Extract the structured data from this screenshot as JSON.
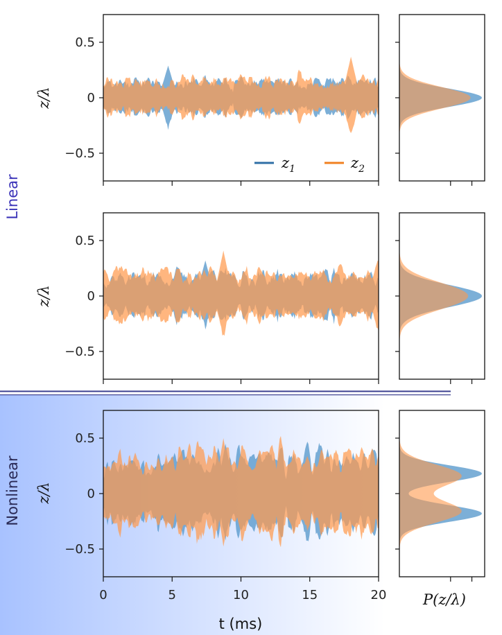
{
  "colors": {
    "z1": "#5b9bcd",
    "z2": "#ff9a4d",
    "z1_line": "#2f6fa6",
    "z2_line": "#f08020",
    "linear_label": "#3a32b8",
    "nonlinear_label": "#2a2a55",
    "separator": "#3b3f8f",
    "nonlinear_bg_start": "#a8c2ff",
    "nonlinear_bg_end": "#ffffff"
  },
  "labels": {
    "linear": "Linear",
    "nonlinear": "Nonlinear",
    "ylabel": "z/λ",
    "xlabel": "t (ms)",
    "hist_xlabel": "P(z/λ)"
  },
  "legend": {
    "placement": "lower-right",
    "entries": [
      {
        "series": "z1",
        "text": "z",
        "sub": "1"
      },
      {
        "series": "z2",
        "text": "z",
        "sub": "2"
      }
    ]
  },
  "chart_data": [
    {
      "type": "area",
      "panel": "linear-top-time",
      "xlim": [
        0,
        20
      ],
      "ylim": [
        -0.75,
        0.75
      ],
      "yticks": [
        0.5,
        0,
        -0.5
      ],
      "ytick_labels": [
        "0.5",
        "0",
        "−0.5"
      ],
      "xticks": [
        0,
        5,
        10,
        15,
        20
      ],
      "xtick_labels_shown": false,
      "series": [
        {
          "key": "z1",
          "amplitude_envelope": 0.14,
          "peak": 0.29,
          "peak_t": 4.7
        },
        {
          "key": "z2",
          "amplitude_envelope": 0.15,
          "peak": 0.37,
          "peak_t": 18.0
        }
      ]
    },
    {
      "type": "area",
      "panel": "linear-top-hist",
      "orientation": "horizontal",
      "ylim": [
        -0.75,
        0.75
      ],
      "distribution": "gaussian",
      "series": [
        {
          "key": "z1",
          "mean": 0,
          "sd": 0.082
        },
        {
          "key": "z2",
          "mean": 0,
          "sd": 0.095
        }
      ]
    },
    {
      "type": "area",
      "panel": "linear-bottom-time",
      "xlim": [
        0,
        20
      ],
      "ylim": [
        -0.75,
        0.75
      ],
      "yticks": [
        0.5,
        0,
        -0.5
      ],
      "ytick_labels": [
        "0.5",
        "0",
        "−0.5"
      ],
      "xticks": [
        0,
        5,
        10,
        15,
        20
      ],
      "xtick_labels_shown": false,
      "series": [
        {
          "key": "z1",
          "amplitude_envelope": 0.17,
          "peak": 0.32,
          "peak_t": 7.4
        },
        {
          "key": "z2",
          "amplitude_envelope": 0.2,
          "peak": 0.41,
          "peak_t": 8.7
        }
      ]
    },
    {
      "type": "area",
      "panel": "linear-bottom-hist",
      "orientation": "horizontal",
      "ylim": [
        -0.75,
        0.75
      ],
      "distribution": "gaussian",
      "series": [
        {
          "key": "z1",
          "mean": 0,
          "sd": 0.1
        },
        {
          "key": "z2",
          "mean": 0,
          "sd": 0.12
        }
      ]
    },
    {
      "type": "area",
      "panel": "nonlinear-time",
      "xlim": [
        0,
        20
      ],
      "ylim": [
        -0.75,
        0.75
      ],
      "yticks": [
        0.5,
        0,
        -0.5
      ],
      "ytick_labels": [
        "0.5",
        "0",
        "−0.5"
      ],
      "xticks": [
        0,
        5,
        10,
        15,
        20
      ],
      "xtick_labels": [
        "0",
        "5",
        "10",
        "15",
        "20"
      ],
      "series": [
        {
          "key": "z1",
          "amplitude_envelope": 0.3,
          "peak": 0.45,
          "peak_t": 8.9
        },
        {
          "key": "z2",
          "amplitude_envelope": 0.32,
          "peak": 0.5,
          "peak_t": 8.7
        }
      ]
    },
    {
      "type": "area",
      "panel": "nonlinear-hist",
      "orientation": "horizontal",
      "ylim": [
        -0.75,
        0.75
      ],
      "distribution": "bimodal",
      "series": [
        {
          "key": "z1",
          "modes": [
            -0.18,
            0.18
          ],
          "sd": 0.075
        },
        {
          "key": "z2",
          "modes": [
            -0.16,
            0.16
          ],
          "sd": 0.1
        }
      ]
    }
  ]
}
